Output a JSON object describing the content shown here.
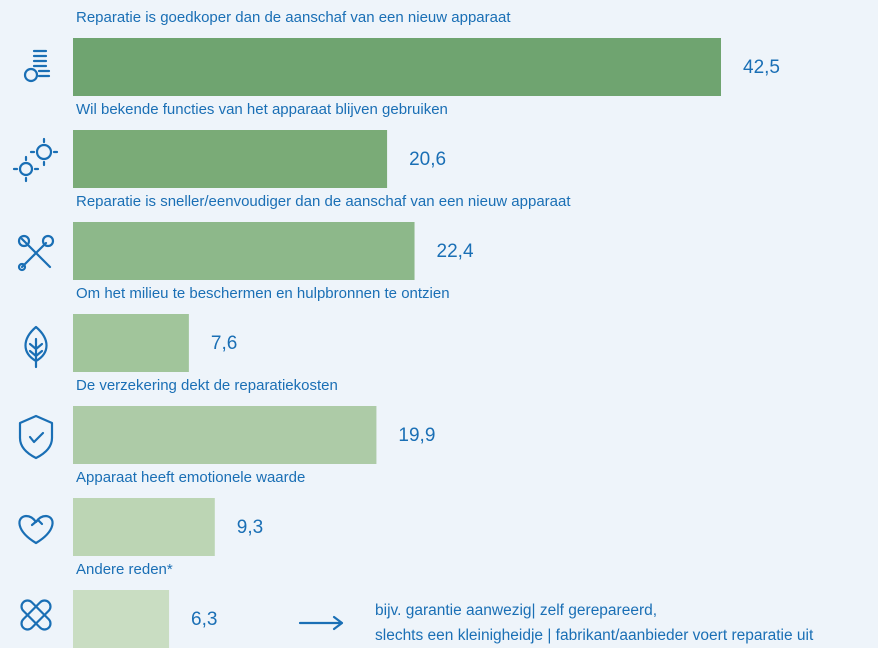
{
  "chart_data": {
    "type": "bar",
    "orientation": "horizontal",
    "categories": [
      "Reparatie is goedkoper dan de aanschaf van een nieuw apparaat",
      "Wil bekende functies van het apparaat blijven gebruiken",
      "Reparatie is sneller/eenvoudiger dan de aanschaf van een nieuw apparaat",
      "Om het milieu te beschermen en hulpbronnen te ontzien",
      "De verzekering dekt de reparatiekosten",
      "Apparaat heeft emotionele waarde",
      "Andere reden*"
    ],
    "values": [
      42.5,
      20.6,
      22.4,
      7.6,
      19.9,
      9.3,
      6.3
    ],
    "value_labels": [
      "42,5",
      "20,6",
      "22,4",
      "7,6",
      "19,9",
      "9,3",
      "6,3"
    ],
    "colors": [
      "#6fa470",
      "#7aab77",
      "#8db88a",
      "#a1c59b",
      "#adcba7",
      "#bcd5b4",
      "#c9ddc2"
    ],
    "annotation": [
      "bijv.  garantie aanwezig| zelf gerepareerd,",
      "slechts een kleinigheidje | fabrikant/aanbieder voert reparatie uit"
    ]
  }
}
